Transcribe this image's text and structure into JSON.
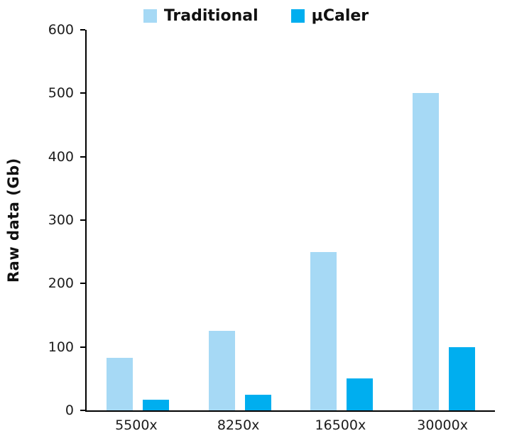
{
  "chart_data": {
    "type": "bar",
    "title": "",
    "xlabel": "",
    "ylabel": "Raw data (Gb)",
    "ylim": [
      0,
      600
    ],
    "yticks": [
      0,
      100,
      200,
      300,
      400,
      500,
      600
    ],
    "grid": false,
    "legend_position": "top",
    "categories": [
      "5500x",
      "8250x",
      "16500x",
      "30000x"
    ],
    "series": [
      {
        "name": "Traditional",
        "color": "#a6d9f5",
        "values": [
          83,
          125,
          250,
          500
        ]
      },
      {
        "name": "µCaler",
        "color": "#00aeef",
        "values": [
          17,
          25,
          50,
          100
        ]
      }
    ]
  }
}
